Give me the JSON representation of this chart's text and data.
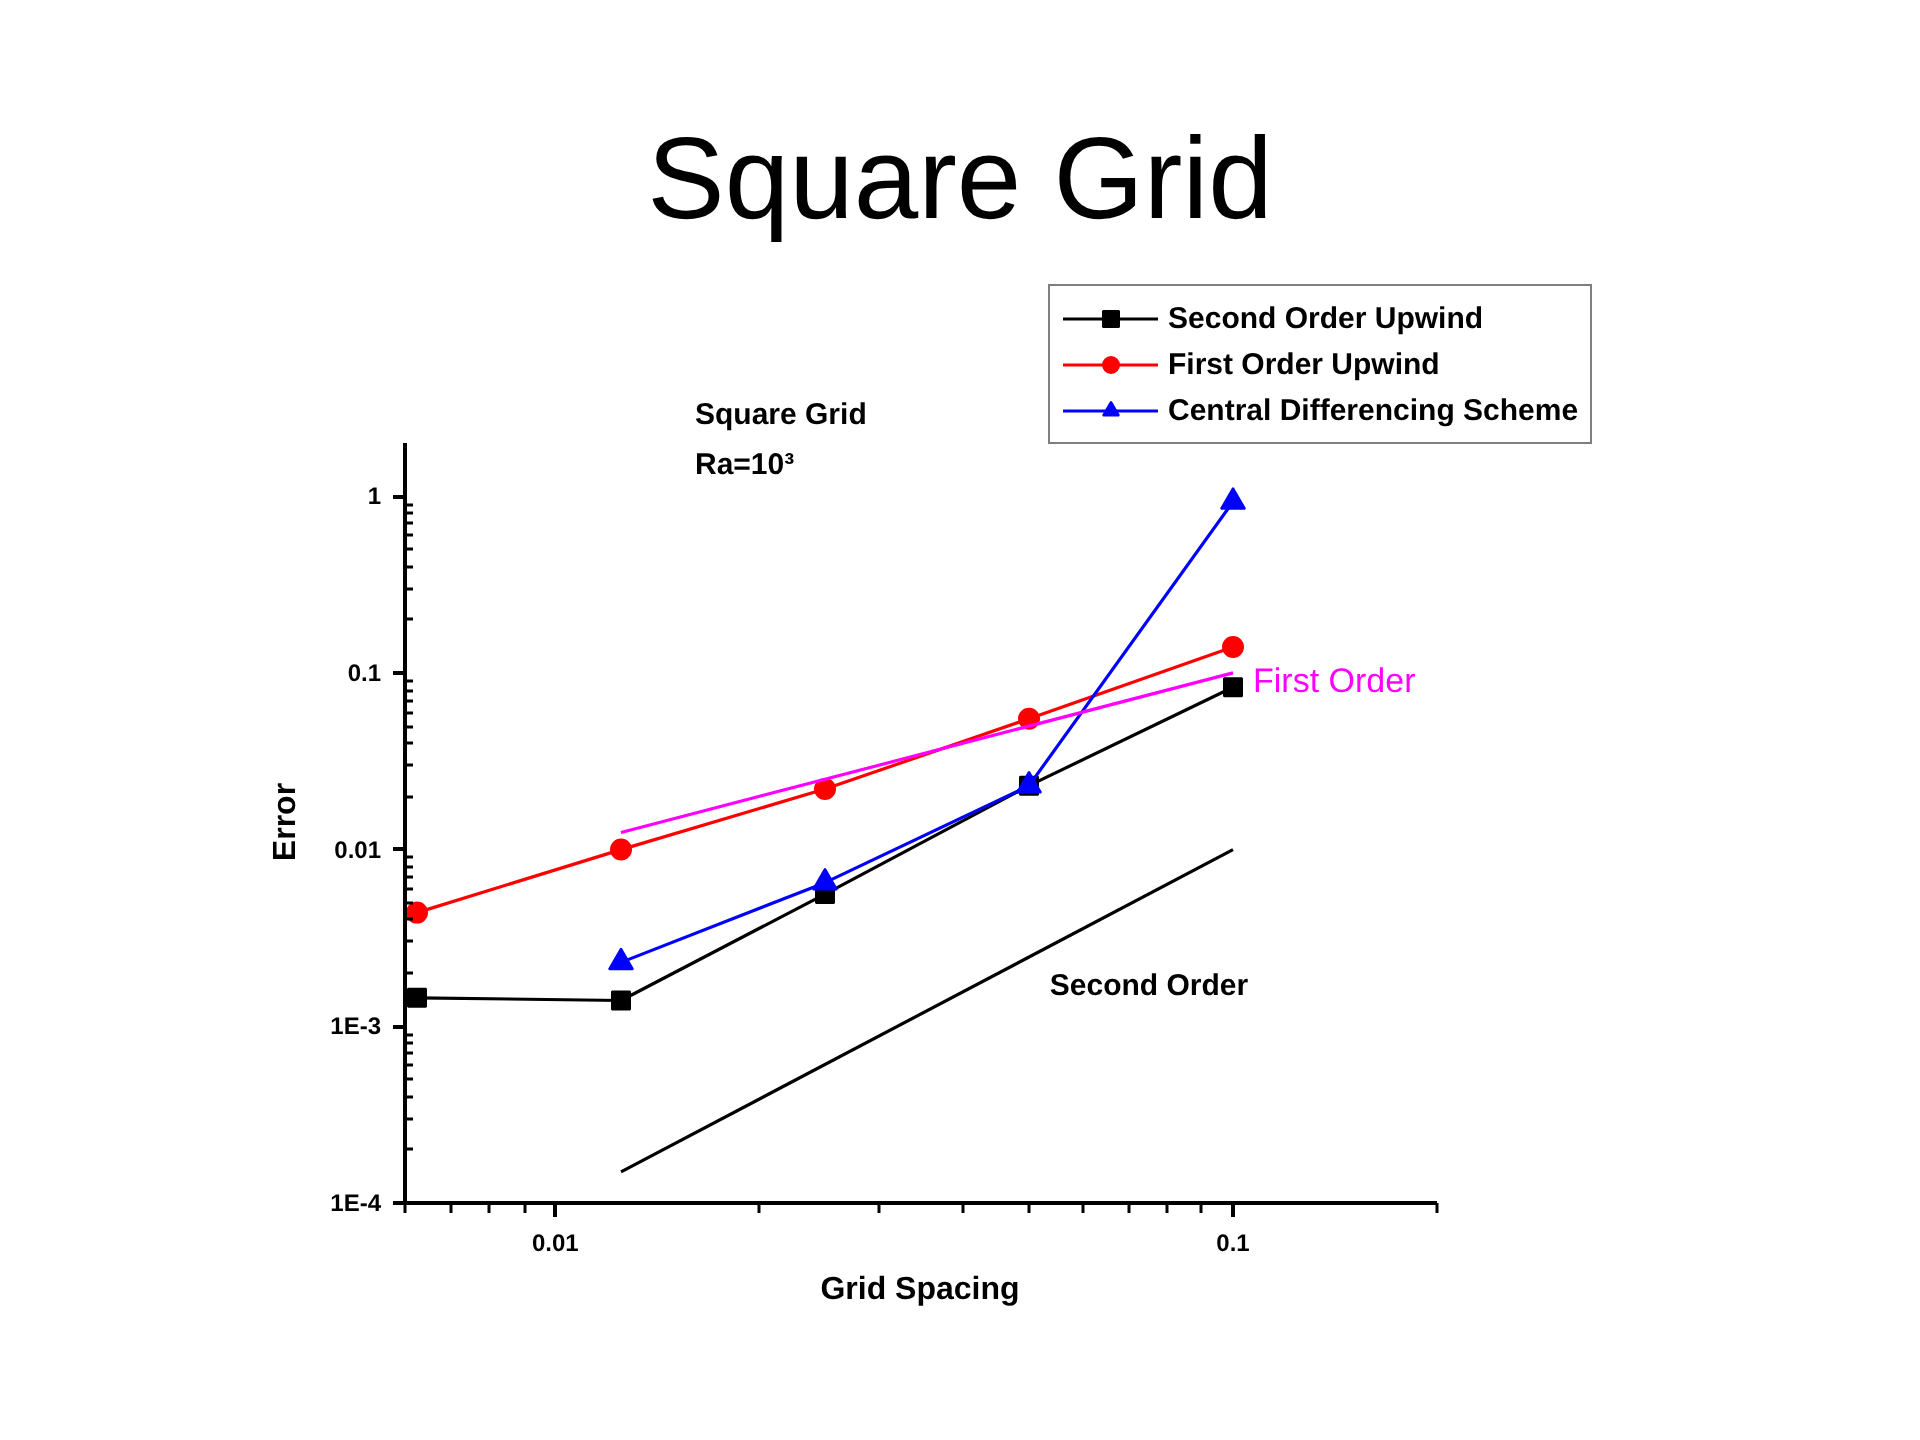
{
  "chart_data": {
    "type": "line",
    "title": "Square Grid",
    "xlabel": "Grid Spacing",
    "ylabel": "Error",
    "log": "xy",
    "legend": "top right",
    "annotations": [
      "Square Grid",
      "Ra=10³"
    ],
    "xlim": [
      0.006,
      0.2
    ],
    "ylim": [
      0.0001,
      2
    ],
    "xticks": [
      {
        "value": 0.006,
        "label": null
      },
      {
        "value": 0.007,
        "label": null
      },
      {
        "value": 0.008,
        "label": null
      },
      {
        "value": 0.009,
        "label": null
      },
      0.01,
      {
        "value": 0.02,
        "label": null
      },
      {
        "value": 0.03,
        "label": null
      },
      {
        "value": 0.04,
        "label": null
      },
      {
        "value": 0.05,
        "label": null
      },
      {
        "value": 0.06,
        "label": null
      },
      {
        "value": 0.07,
        "label": null
      },
      {
        "value": 0.08,
        "label": null
      },
      {
        "value": 0.09,
        "label": null
      },
      0.1,
      {
        "value": 0.2,
        "label": null
      }
    ],
    "yticks": [
      {
        "value": 0.0001,
        "label": "1E-4"
      },
      {
        "value": 0.0002,
        "label": null
      },
      {
        "value": 0.0003,
        "label": null
      },
      {
        "value": 0.0004,
        "label": null
      },
      {
        "value": 0.0005,
        "label": null
      },
      {
        "value": 0.0006,
        "label": null
      },
      {
        "value": 0.0007,
        "label": null
      },
      {
        "value": 0.0008,
        "label": null
      },
      {
        "value": 0.0009,
        "label": null
      },
      {
        "value": 0.001,
        "label": "1E-3"
      },
      {
        "value": 0.002,
        "label": null
      },
      {
        "value": 0.003,
        "label": null
      },
      {
        "value": 0.004,
        "label": null
      },
      {
        "value": 0.005,
        "label": null
      },
      {
        "value": 0.006,
        "label": null
      },
      {
        "value": 0.007,
        "label": null
      },
      {
        "value": 0.008,
        "label": null
      },
      {
        "value": 0.009,
        "label": null
      },
      0.01,
      {
        "value": 0.02,
        "label": null
      },
      {
        "value": 0.03,
        "label": null
      },
      {
        "value": 0.04,
        "label": null
      },
      {
        "value": 0.05,
        "label": null
      },
      {
        "value": 0.06,
        "label": null
      },
      {
        "value": 0.07,
        "label": null
      },
      {
        "value": 0.08,
        "label": null
      },
      {
        "value": 0.09,
        "label": null
      },
      0.1,
      {
        "value": 0.2,
        "label": null
      },
      {
        "value": 0.3,
        "label": null
      },
      {
        "value": 0.4,
        "label": null
      },
      {
        "value": 0.5,
        "label": null
      },
      {
        "value": 0.6,
        "label": null
      },
      {
        "value": 0.7,
        "label": null
      },
      {
        "value": 0.8,
        "label": null
      },
      {
        "value": 0.9,
        "label": null
      },
      1
    ],
    "x": [
      0.00625,
      0.0125,
      0.025,
      0.05,
      0.1
    ],
    "series": [
      {
        "name": "Second Order Upwind",
        "color": "#000000",
        "marker": "square",
        "values": [
          0.00145,
          0.0014,
          0.0056,
          0.023,
          0.083
        ]
      },
      {
        "name": "First Order Upwind",
        "color": "#ff0000",
        "marker": "circle",
        "values": [
          0.0044,
          0.01,
          0.022,
          0.055,
          0.14
        ]
      },
      {
        "name": "Central Differencing Scheme",
        "color": "#0000ff",
        "marker": "triangle",
        "x": [
          0.0125,
          0.025,
          0.05,
          0.1
        ],
        "values": [
          0.0023,
          0.0065,
          0.023,
          0.93
        ]
      },
      {
        "name": "First Order",
        "color": "#ff00ff",
        "marker": "none",
        "x": [
          0.0125,
          0.1
        ],
        "values": [
          0.0125,
          0.1
        ]
      },
      {
        "name": "Second Order",
        "color": "#000000",
        "marker": "none",
        "x": [
          0.0125,
          0.1
        ],
        "values": [
          0.00015,
          0.01
        ]
      }
    ]
  }
}
